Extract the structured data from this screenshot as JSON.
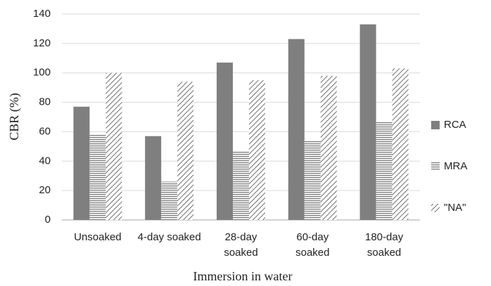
{
  "chart_data": {
    "type": "bar",
    "x_label": "Immersion in water",
    "y_label": "CBR (%)",
    "categories": [
      "Unsoaked",
      "4-day soaked",
      "28-day soaked",
      "60-day soaked",
      "180-day soaked"
    ],
    "series": [
      {
        "name": "RCA",
        "color": "#7f7f7f",
        "pattern": "solid",
        "values": [
          77,
          57,
          107,
          123,
          133
        ]
      },
      {
        "name": "MRA",
        "color": "#7f7f7f",
        "pattern": "horizontal",
        "values": [
          58,
          26,
          47,
          54,
          67
        ]
      },
      {
        "name": "\"NA\"",
        "color": "#7f7f7f",
        "pattern": "diagonal",
        "values": [
          100,
          94,
          95,
          98,
          103
        ]
      }
    ],
    "ylim": [
      0,
      140
    ],
    "yticks": [
      0,
      20,
      40,
      60,
      80,
      100,
      120,
      140
    ],
    "grid": true,
    "legend": "right"
  }
}
